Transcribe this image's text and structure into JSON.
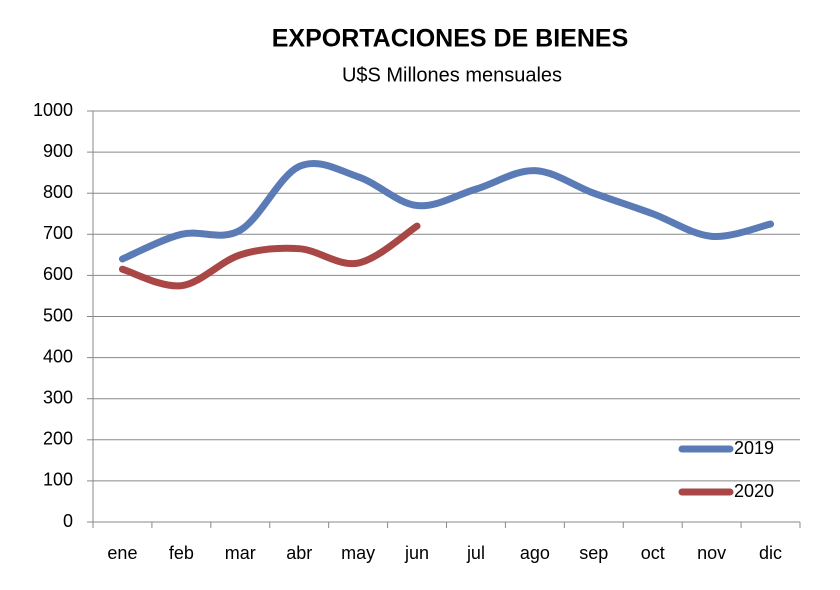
{
  "chart_data": {
    "type": "line",
    "title": "EXPORTACIONES DE BIENES",
    "subtitle": "U$S Millones  mensuales",
    "categories": [
      "ene",
      "feb",
      "mar",
      "abr",
      "may",
      "jun",
      "jul",
      "ago",
      "sep",
      "oct",
      "nov",
      "dic"
    ],
    "series": [
      {
        "name": "2019",
        "color": "#5b7bb6",
        "values": [
          640,
          700,
          710,
          865,
          840,
          770,
          810,
          855,
          800,
          750,
          695,
          725
        ]
      },
      {
        "name": "2020",
        "color": "#a94646",
        "values": [
          615,
          575,
          650,
          665,
          630,
          720,
          null,
          null,
          null,
          null,
          null,
          null
        ]
      }
    ],
    "ylim": [
      0,
      1000
    ],
    "yticks": [
      0,
      100,
      200,
      300,
      400,
      500,
      600,
      700,
      800,
      900,
      1000
    ],
    "grid": true,
    "smooth": true,
    "legend": "lower right"
  }
}
